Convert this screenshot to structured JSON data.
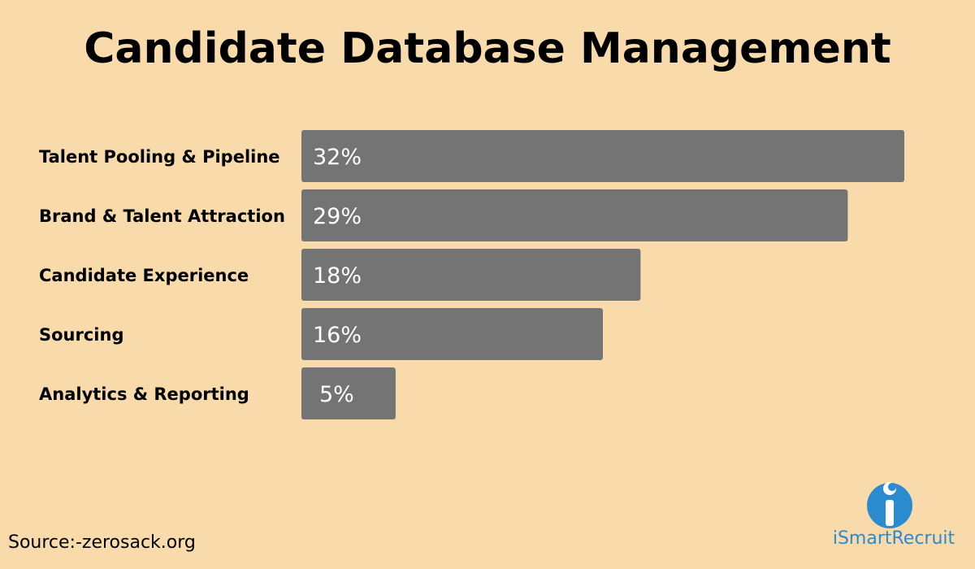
{
  "title": "Candidate Database Management",
  "source": "Source:-zerosack.org",
  "brand": {
    "name": "iSmartRecruit",
    "icon": "ismartrecruit-logo-icon",
    "color": "#2a8ccf"
  },
  "colors": {
    "background": "#f9dbab",
    "bar": "#747474",
    "bar_label": "#ffffff",
    "category_label": "#000000"
  },
  "chart_data": {
    "type": "bar",
    "orientation": "horizontal",
    "categories": [
      "Talent Pooling & Pipeline",
      "Brand & Talent Attraction",
      "Candidate Experience",
      "Sourcing",
      "Analytics & Reporting"
    ],
    "values": [
      32,
      29,
      18,
      16,
      5
    ],
    "data_labels": [
      "32%",
      "29%",
      "18%",
      "16%",
      "5%"
    ],
    "unit": "%",
    "title": "Candidate Database Management",
    "xlabel": "",
    "ylabel": "",
    "xlim": [
      0,
      32
    ],
    "grid": false,
    "legend": "none"
  }
}
